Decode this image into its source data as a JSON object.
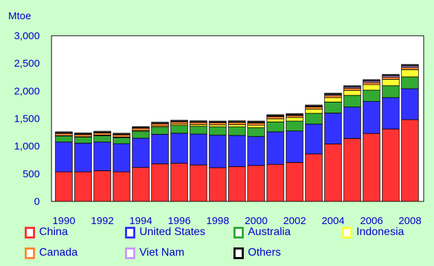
{
  "chart_data": {
    "type": "bar",
    "stacked": true,
    "title": "",
    "ylabel": "Mtoe",
    "xlabel": "",
    "ylim": [
      0,
      3000
    ],
    "yticks": [
      "0",
      "500",
      "1,000",
      "1,500",
      "2,000",
      "2,500",
      "3,000"
    ],
    "ytick_values": [
      0,
      500,
      1000,
      1500,
      2000,
      2500,
      3000
    ],
    "categories": [
      "1990",
      "1991",
      "1992",
      "1993",
      "1994",
      "1995",
      "1996",
      "1997",
      "1998",
      "1999",
      "2000",
      "2001",
      "2002",
      "2003",
      "2004",
      "2005",
      "2006",
      "2007",
      "2008"
    ],
    "xtick_labels": [
      "1990",
      "1992",
      "1994",
      "1996",
      "1998",
      "2000",
      "2002",
      "2004",
      "2006",
      "2008"
    ],
    "grid": false,
    "legend_position": "bottom",
    "series": [
      {
        "name": "China",
        "color": "#ff3333",
        "values": [
          535,
          535,
          555,
          535,
          615,
          680,
          690,
          660,
          610,
          630,
          650,
          670,
          705,
          860,
          1040,
          1140,
          1230,
          1310,
          1480
        ]
      },
      {
        "name": "United States",
        "color": "#3333ff",
        "values": [
          540,
          520,
          520,
          510,
          530,
          535,
          545,
          560,
          590,
          565,
          525,
          590,
          570,
          540,
          560,
          570,
          580,
          570,
          560
        ]
      },
      {
        "name": "Australia",
        "color": "#33aa33",
        "values": [
          110,
          110,
          115,
          110,
          125,
          130,
          140,
          140,
          150,
          155,
          160,
          180,
          180,
          195,
          200,
          210,
          205,
          215,
          215
        ]
      },
      {
        "name": "Indonesia",
        "color": "#ffff33",
        "values": [
          5,
          5,
          10,
          10,
          15,
          20,
          25,
          30,
          35,
          40,
          45,
          55,
          65,
          75,
          80,
          90,
          100,
          115,
          130
        ]
      },
      {
        "name": "Canada",
        "color": "#ff8833",
        "values": [
          40,
          40,
          40,
          40,
          40,
          40,
          40,
          40,
          40,
          40,
          40,
          40,
          35,
          40,
          40,
          40,
          40,
          40,
          40
        ]
      },
      {
        "name": "Viet Nam",
        "color": "#cc99ff",
        "values": [
          5,
          5,
          5,
          5,
          5,
          5,
          5,
          5,
          5,
          5,
          10,
          10,
          10,
          10,
          15,
          20,
          25,
          25,
          25
        ]
      },
      {
        "name": "Others",
        "color": "#333333",
        "values": [
          25,
          25,
          25,
          25,
          25,
          25,
          25,
          25,
          25,
          25,
          25,
          25,
          25,
          25,
          25,
          25,
          25,
          25,
          30
        ]
      }
    ]
  }
}
